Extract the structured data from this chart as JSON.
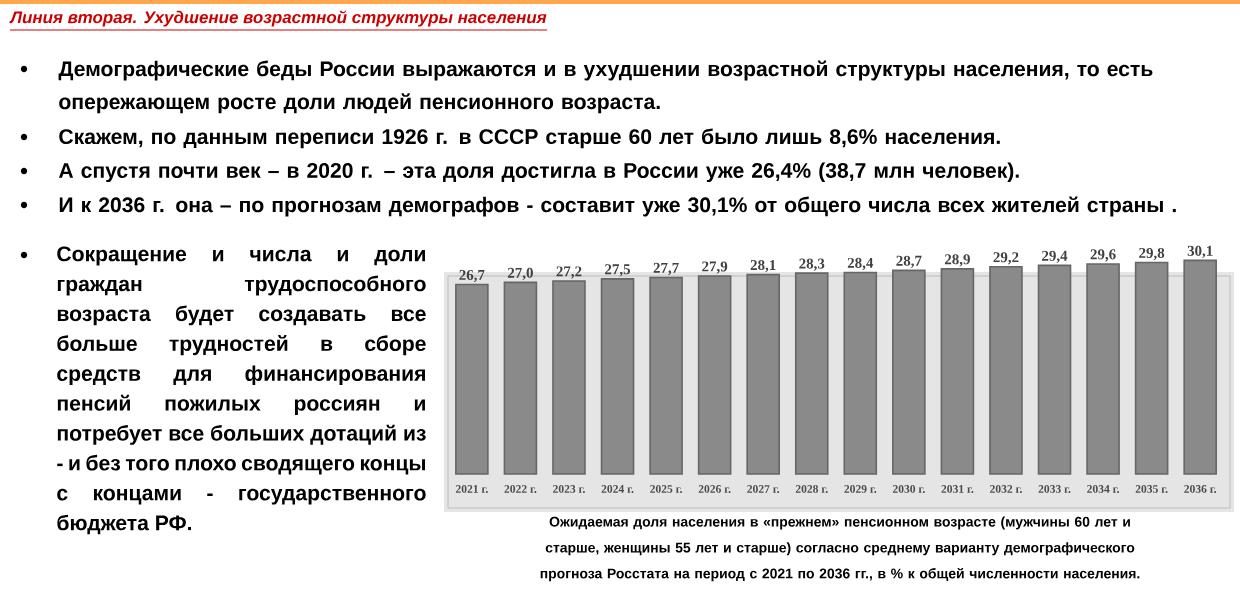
{
  "chart_data": {
    "type": "bar",
    "title": "Линия  вторая. Ухудшение возрастной структуры населения",
    "categories": [
      "2021 г.",
      "2022 г.",
      "2023 г.",
      "2024 г.",
      "2025 г.",
      "2026 г.",
      "2027 г.",
      "2028 г.",
      "2029 г.",
      "2030 г.",
      "2031 г.",
      "2032 г.",
      "2033 г.",
      "2034 г.",
      "2035 г.",
      "2036 г."
    ],
    "values": [
      26.7,
      27.0,
      27.2,
      27.5,
      27.7,
      27.9,
      28.1,
      28.3,
      28.4,
      28.7,
      28.9,
      29.2,
      29.4,
      29.6,
      29.8,
      30.1
    ],
    "value_labels": [
      "26,7",
      "27,0",
      "27,2",
      "27,5",
      "27,7",
      "27,9",
      "28,1",
      "28,3",
      "28,4",
      "28,7",
      "28,9",
      "29,2",
      "29,4",
      "29,6",
      "29,8",
      "30,1"
    ],
    "color": "#8a8a8a",
    "annotations": [
      "Демографические беды России выражаются и в ухудшении возрастной структуры населения, то есть опережающем росте доли людей пенсионного возраста.",
      "Скажем, по данным переписи 1926 г. в СССР старше 60 лет было лишь 8,6% населения.",
      "А спустя почти век – в 2020 г. – эта доля достигла в России уже 26,4% (38,7 млн человек).",
      "И к 2036 г. она – по прогнозам  демографов - составит уже 30,1% от общего числа всех жителей страны .",
      "Сокращение и числа и доли граждан трудоспособного возраста будет создавать все больше трудностей в сборе средств для финансирования пенсий пожилых россиян и потребует все больших дотаций из - и без того плохо сводящего концы с концами - государственного бюджета РФ.",
      "Ожидаемая доля населения в «прежнем» пенсионном возрасте (мужчины 60 лет и старше, женщины 55 лет и старше) согласно среднему варианту демографического прогноза Росстата на период с 2021 по 2036 гг., в % к общей численности населения."
    ]
  }
}
